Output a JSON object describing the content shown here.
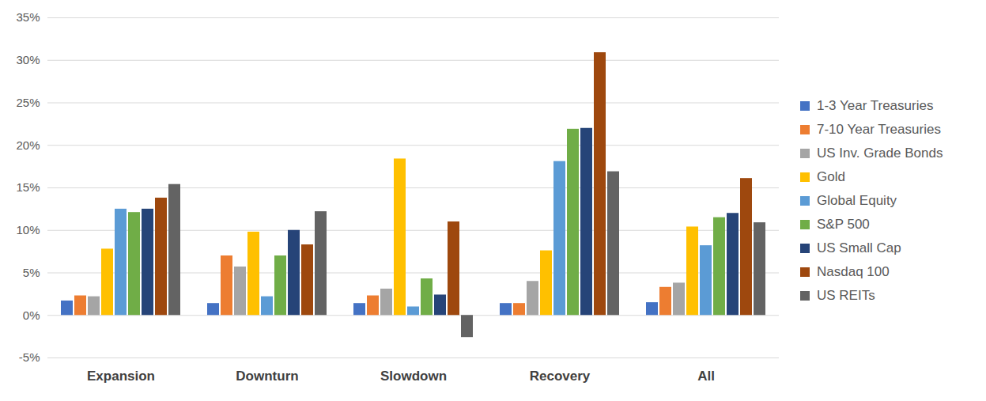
{
  "chart_data": {
    "type": "bar",
    "categories": [
      "Expansion",
      "Downturn",
      "Slowdown",
      "Recovery",
      "All"
    ],
    "series": [
      {
        "name": "1-3 Year Treasuries",
        "color": "#4472c4",
        "values": [
          1.7,
          1.4,
          1.4,
          1.4,
          1.5
        ]
      },
      {
        "name": "7-10 Year Treasuries",
        "color": "#ed7d31",
        "values": [
          2.3,
          7.0,
          2.3,
          1.4,
          3.3
        ]
      },
      {
        "name": "US Inv. Grade Bonds",
        "color": "#a5a5a5",
        "values": [
          2.2,
          5.7,
          3.1,
          4.0,
          3.8
        ]
      },
      {
        "name": "Gold",
        "color": "#ffc000",
        "values": [
          7.8,
          9.8,
          18.4,
          7.6,
          10.4
        ]
      },
      {
        "name": "Global Equity",
        "color": "#5b9bd5",
        "values": [
          12.5,
          2.2,
          1.0,
          18.1,
          8.2
        ]
      },
      {
        "name": "S&P 500",
        "color": "#70ad47",
        "values": [
          12.1,
          7.0,
          4.3,
          21.9,
          11.5
        ]
      },
      {
        "name": "US Small Cap",
        "color": "#264478",
        "values": [
          12.5,
          10.0,
          2.4,
          22.0,
          12.0
        ]
      },
      {
        "name": "Nasdaq 100",
        "color": "#9e480e",
        "values": [
          13.8,
          8.3,
          11.0,
          30.9,
          16.1
        ]
      },
      {
        "name": "US REITs",
        "color": "#636363",
        "values": [
          15.4,
          12.2,
          -2.6,
          16.9,
          10.9
        ]
      }
    ],
    "ylim": [
      -5,
      35
    ],
    "yticks": [
      {
        "value": -5,
        "label": "-5%"
      },
      {
        "value": 0,
        "label": "0%"
      },
      {
        "value": 5,
        "label": "5%"
      },
      {
        "value": 10,
        "label": "10%"
      },
      {
        "value": 15,
        "label": "15%"
      },
      {
        "value": 20,
        "label": "20%"
      },
      {
        "value": 25,
        "label": "25%"
      },
      {
        "value": 30,
        "label": "30%"
      },
      {
        "value": 35,
        "label": "35%"
      }
    ],
    "grid": true,
    "legend": "right"
  }
}
